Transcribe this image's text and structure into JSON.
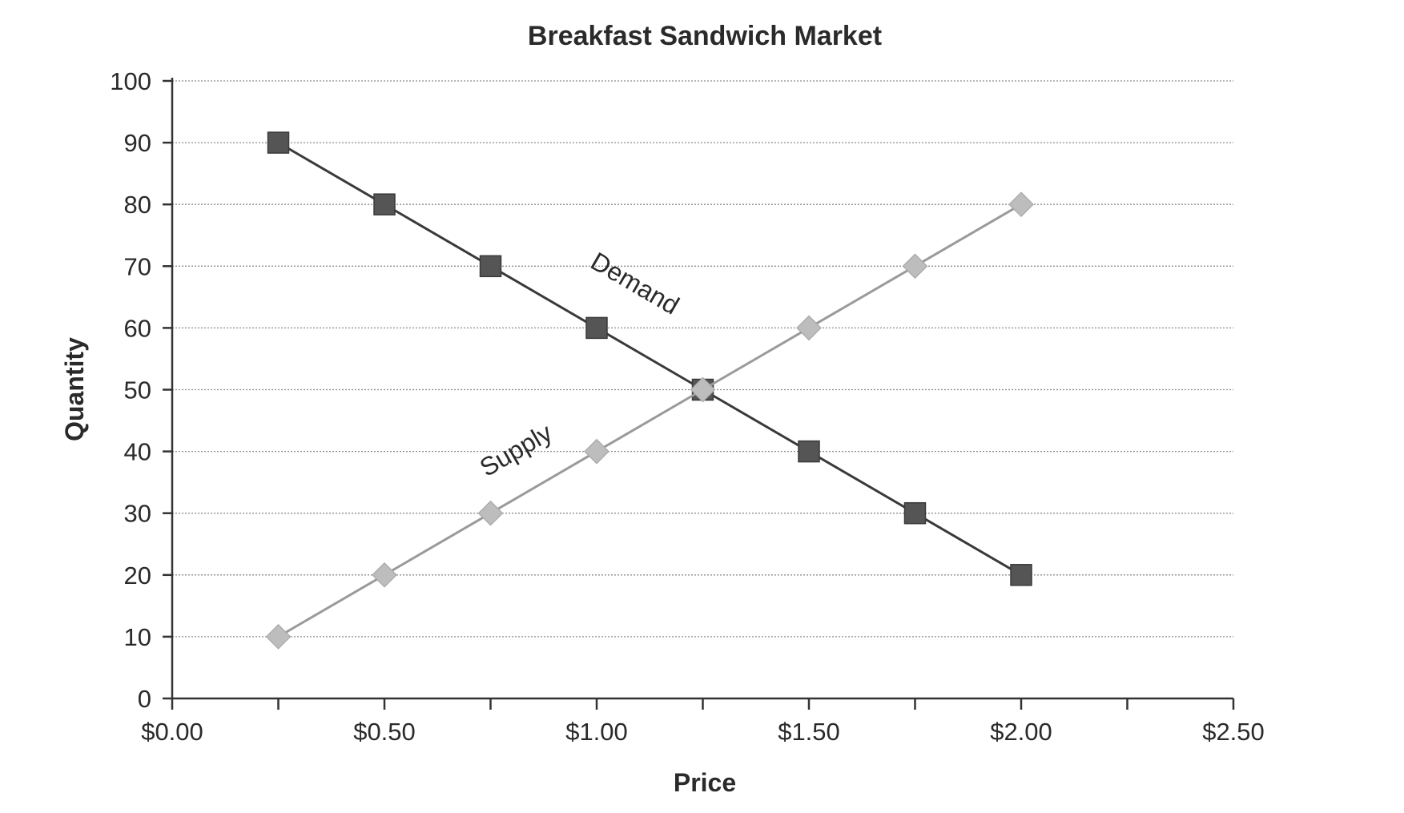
{
  "chart_data": {
    "type": "line",
    "title": "Breakfast Sandwich Market",
    "xlabel": "Price",
    "ylabel": "Quantity",
    "xlim": [
      0,
      2.5
    ],
    "ylim": [
      0,
      100
    ],
    "x_ticks": [
      0,
      0.5,
      1.0,
      1.5,
      2.0,
      2.5
    ],
    "x_tick_labels": [
      "$0.00",
      "$0.50",
      "$1.00",
      "$1.50",
      "$2.00",
      "$2.50"
    ],
    "x_minor_ticks": [
      0.25,
      0.75,
      1.25,
      1.75,
      2.25
    ],
    "y_ticks": [
      0,
      10,
      20,
      30,
      40,
      50,
      60,
      70,
      80,
      90,
      100
    ],
    "y_tick_labels": [
      "0",
      "10",
      "20",
      "30",
      "40",
      "50",
      "60",
      "70",
      "80",
      "90",
      "100"
    ],
    "grid": "horizontal",
    "x": [
      0.25,
      0.5,
      0.75,
      1.0,
      1.25,
      1.5,
      1.75,
      2.0
    ],
    "series": [
      {
        "name": "Demand",
        "values": [
          90,
          80,
          70,
          60,
          50,
          40,
          30,
          20
        ],
        "marker": "square",
        "line_color": "#3a3a3a",
        "marker_color": "#555555",
        "label_x": 1.08,
        "label_y": 66
      },
      {
        "name": "Supply",
        "values": [
          10,
          20,
          30,
          40,
          50,
          60,
          70,
          80
        ],
        "marker": "diamond",
        "line_color": "#9a9a9a",
        "marker_color": "#bdbdbd",
        "label_x": 0.82,
        "label_y": 39
      }
    ]
  }
}
